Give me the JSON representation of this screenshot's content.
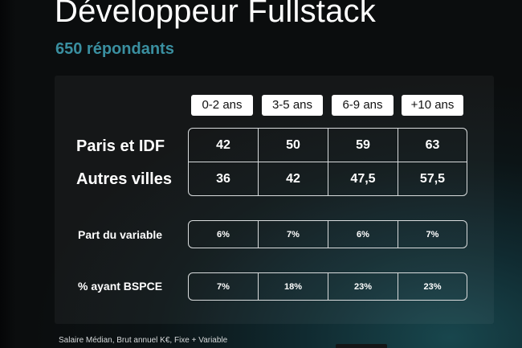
{
  "title": "Développeur Fullstack",
  "respondents": "650 répondants",
  "experience_columns": [
    "0-2 ans",
    "3-5 ans",
    "6-9 ans",
    "+10 ans"
  ],
  "salary_rows": [
    {
      "label": "Paris et IDF",
      "values": [
        "42",
        "50",
        "59",
        "63"
      ]
    },
    {
      "label": "Autres villes",
      "values": [
        "36",
        "42",
        "47,5",
        "57,5"
      ]
    }
  ],
  "variable_share": {
    "label": "Part du variable",
    "values": [
      "6%",
      "7%",
      "6%",
      "7%"
    ]
  },
  "bspce_share": {
    "label": "% ayant BSPCE",
    "values": [
      "7%",
      "18%",
      "23%",
      "23%"
    ]
  },
  "footnote": "Salaire Médian, Brut annuel K€, Fixe + Variable",
  "colors": {
    "accent": "#3a8fa0",
    "background": "#0b0d0e",
    "teal_glow": "#18464d"
  }
}
